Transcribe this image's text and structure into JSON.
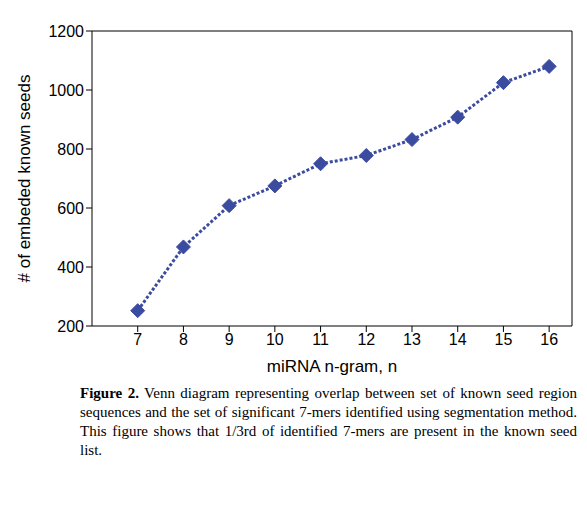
{
  "chart_data": {
    "type": "line",
    "x_label": "miRNA n-gram, n",
    "y_label": "# of embeded known seeds",
    "x": [
      7,
      8,
      9,
      10,
      11,
      12,
      13,
      14,
      15,
      16
    ],
    "values": [
      252,
      468,
      608,
      675,
      750,
      778,
      832,
      908,
      1025,
      1080
    ],
    "color": "#3b4ba0",
    "marker": "diamond",
    "line_style": "dotted",
    "xlim": [
      6,
      16.5
    ],
    "xticks": [
      7,
      8,
      9,
      10,
      11,
      12,
      13,
      14,
      15,
      16
    ],
    "ylim": [
      200,
      1200
    ],
    "yticks": [
      200,
      400,
      600,
      800,
      1000,
      1200
    ],
    "grid": false,
    "caption": {
      "label": "Figure 2.",
      "text": "Venn diagram representing overlap between set of known seed region sequences and the set of significant 7-mers identified using segmentation method. This figure shows that 1/3rd of identified 7-mers are present in the known seed list."
    }
  }
}
